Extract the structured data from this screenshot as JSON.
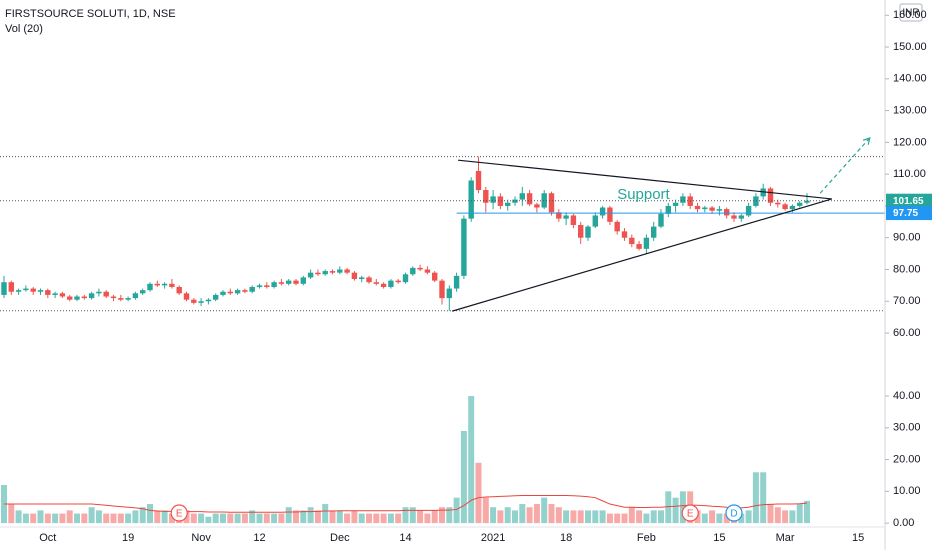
{
  "chart_data": {
    "type": "candlestick",
    "title": "FIRSTSOURCE SOLUTI, 1D, NSE",
    "indicator": "Vol (20)",
    "currency": "INR",
    "up_color": "#26a69a",
    "down_color": "#ef5350",
    "volume_up_color": "#93d2cc",
    "volume_down_color": "#f7a9a7",
    "ma_color": "#e8473f",
    "grid": false,
    "categories": [
      null,
      null,
      null,
      null,
      null,
      null,
      "Oct",
      null,
      null,
      null,
      null,
      null,
      null,
      null,
      null,
      null,
      null,
      "19",
      null,
      null,
      null,
      null,
      null,
      null,
      null,
      null,
      null,
      "Nov",
      null,
      null,
      null,
      null,
      null,
      null,
      null,
      "12",
      null,
      null,
      null,
      null,
      null,
      null,
      null,
      null,
      null,
      null,
      "Dec",
      null,
      null,
      null,
      null,
      null,
      null,
      null,
      null,
      "14",
      null,
      null,
      null,
      null,
      null,
      null,
      null,
      null,
      null,
      null,
      null,
      "2021",
      null,
      null,
      null,
      null,
      null,
      null,
      null,
      null,
      null,
      "18",
      null,
      null,
      null,
      null,
      null,
      null,
      null,
      null,
      null,
      null,
      "Feb",
      null,
      null,
      null,
      null,
      null,
      null,
      null,
      null,
      null,
      "15",
      null,
      null,
      null,
      null,
      null,
      null,
      null,
      null,
      "Mar",
      null,
      null,
      null,
      null,
      null,
      null,
      null,
      null,
      null,
      "15",
      null,
      null,
      null
    ],
    "open": [
      72,
      76,
      73,
      73.5,
      74,
      73,
      73.5,
      72,
      72.5,
      71.5,
      70.5,
      71.5,
      71,
      72.5,
      73,
      71.5,
      71,
      70.5,
      71,
      72.5,
      73.5,
      75.5,
      75,
      75.5,
      74.5,
      72.5,
      70.5,
      69.5,
      70,
      70.5,
      72,
      73,
      72.5,
      73.5,
      73,
      74.5,
      75,
      74.5,
      76,
      75.5,
      76.5,
      75.5,
      77.5,
      79,
      78.5,
      79.5,
      79,
      80,
      79,
      77,
      77.5,
      76,
      75.5,
      74.5,
      76.5,
      76,
      78.5,
      80.5,
      80,
      79,
      76.5,
      71,
      74,
      78,
      96,
      111,
      105,
      101,
      103,
      100,
      101,
      102,
      104,
      100.5,
      99.5,
      104,
      98,
      96,
      97,
      94,
      90,
      93.5,
      97,
      99.5,
      95,
      92,
      90,
      88,
      86.5,
      90,
      93.5,
      97.5,
      100,
      101,
      103,
      100,
      99,
      99.5,
      98.5,
      99,
      97,
      96,
      97,
      100,
      103,
      105.5,
      101,
      100.5,
      99,
      100,
      101,
      null,
      null,
      null,
      null,
      null,
      null,
      null,
      null,
      null,
      null
    ],
    "high": [
      78,
      76.5,
      74,
      75,
      74.5,
      74,
      74,
      73,
      73,
      72,
      72,
      72,
      73,
      74,
      73.5,
      72,
      72,
      71.5,
      73,
      74,
      76,
      76.5,
      76,
      77,
      75,
      73,
      71,
      71,
      71,
      72.5,
      73.5,
      74,
      74,
      74,
      75,
      75.5,
      76,
      76.5,
      77,
      77,
      77,
      78,
      80,
      80,
      80,
      80,
      81,
      80.5,
      79.5,
      78,
      78,
      77,
      76,
      77,
      77,
      79,
      81,
      81.5,
      81,
      79.5,
      77,
      75,
      79,
      97,
      109,
      115.5,
      106,
      105,
      104,
      102,
      103,
      106,
      105,
      101,
      105,
      104.5,
      99,
      98,
      97.5,
      95,
      94,
      98,
      100,
      100,
      95.5,
      93,
      91,
      89,
      91,
      95,
      99,
      101,
      102,
      104,
      104,
      101,
      100,
      100,
      100,
      99.5,
      98,
      97.5,
      101,
      104,
      107,
      106,
      102,
      101,
      100.5,
      101.5,
      104,
      null,
      null,
      null,
      null,
      null,
      null,
      null,
      null,
      null,
      null
    ],
    "low": [
      71,
      72,
      72,
      73,
      72,
      72,
      71,
      71,
      71,
      70,
      70,
      70.5,
      70.5,
      71.5,
      71,
      70,
      70,
      70,
      70.5,
      72,
      73,
      74.5,
      74,
      74,
      72,
      70,
      69,
      68.5,
      69,
      70,
      71.5,
      72,
      72,
      72.5,
      72.5,
      74,
      74,
      74,
      75,
      75,
      75,
      75,
      77,
      78,
      78,
      78.5,
      78.5,
      78.5,
      76.5,
      76,
      75.5,
      75,
      74,
      74,
      75.5,
      75.5,
      78,
      79.5,
      78.5,
      76,
      69,
      67,
      73,
      77,
      95,
      104,
      98,
      99,
      99,
      98.5,
      100,
      100,
      100,
      98,
      99,
      97,
      95,
      94,
      93,
      88,
      89,
      93,
      96,
      94,
      91,
      89,
      87,
      86,
      85,
      89,
      93,
      96.5,
      98,
      100,
      99,
      98,
      98,
      97.5,
      97,
      96,
      95,
      95,
      96.5,
      99.5,
      102,
      100,
      99.5,
      98.5,
      98,
      99.5,
      100.5,
      null,
      null,
      null,
      null,
      null,
      null,
      null,
      null,
      null,
      null
    ],
    "close": [
      76,
      73,
      73.5,
      74,
      73,
      73.5,
      72,
      72.5,
      71.5,
      70.5,
      71.5,
      71,
      72.5,
      73,
      71.5,
      71,
      70.5,
      71,
      72.5,
      73.5,
      75.5,
      75,
      75.5,
      74.5,
      72.5,
      70.5,
      69.5,
      70,
      70.5,
      72,
      73,
      72.5,
      73.5,
      73,
      74.5,
      75,
      74.5,
      76,
      75.5,
      76.5,
      75.5,
      77.5,
      79,
      78.5,
      79.5,
      79,
      80,
      79,
      77,
      77.5,
      76,
      75.5,
      74.5,
      76.5,
      76,
      78.5,
      80.5,
      80,
      79,
      76.5,
      71,
      74,
      78,
      96,
      108,
      105,
      101,
      103,
      100,
      101,
      102,
      104,
      100.5,
      99.5,
      104,
      98,
      96,
      97,
      94,
      90,
      93.5,
      97,
      99.5,
      95,
      92,
      90,
      88,
      86.5,
      90,
      93.5,
      97.5,
      100,
      101,
      103,
      100,
      99,
      99.5,
      98.5,
      99,
      97,
      96,
      97,
      100,
      103,
      105.5,
      101,
      100.5,
      99,
      100,
      101,
      101.65,
      null,
      null,
      null,
      null,
      null,
      null,
      null,
      null,
      null,
      null
    ],
    "volume": [
      12,
      6,
      4,
      3,
      3,
      4,
      3,
      3,
      3,
      4,
      3,
      3,
      5,
      4,
      3,
      3,
      3,
      3,
      4,
      5,
      6,
      4,
      4,
      3,
      3,
      4,
      3,
      3,
      2,
      3,
      3,
      3,
      3,
      3,
      4,
      3,
      3,
      3,
      3,
      5,
      4,
      4,
      5,
      4,
      6,
      4,
      4,
      3,
      4,
      3,
      3,
      3,
      3,
      3,
      3,
      5,
      5,
      4,
      3,
      4,
      5,
      5,
      8,
      29,
      40,
      19,
      8,
      5,
      4,
      5,
      4,
      6,
      5,
      6,
      8,
      6,
      5,
      4,
      4,
      4,
      4,
      4,
      4,
      3,
      3,
      3,
      5,
      4,
      3,
      4,
      4,
      10,
      8,
      10,
      10,
      4,
      3,
      4,
      3,
      3,
      3,
      3,
      4,
      16,
      16,
      6,
      5,
      4,
      4,
      6,
      7,
      null,
      null,
      null,
      null,
      null,
      null,
      null,
      null,
      null,
      null
    ],
    "volume_ma": [
      6,
      6,
      6,
      6,
      6,
      6,
      6,
      6,
      6,
      6,
      6,
      6,
      6,
      5.8,
      5.6,
      5.4,
      5.2,
      5,
      4.8,
      4.5,
      4,
      3.8,
      3.7,
      3.7,
      3.6,
      3.6,
      3.6,
      3.6,
      3.5,
      3.5,
      3.5,
      3.4,
      3.4,
      3.4,
      3.4,
      3.4,
      3.4,
      3.4,
      3.4,
      3.5,
      3.5,
      3.6,
      3.6,
      3.7,
      3.8,
      3.8,
      3.9,
      3.9,
      3.9,
      3.9,
      3.9,
      3.9,
      3.9,
      3.9,
      3.9,
      4,
      4,
      4,
      4,
      4,
      4.1,
      4.1,
      4.3,
      5.5,
      7.2,
      8,
      8.2,
      8.3,
      8.4,
      8.5,
      8.6,
      8.7,
      8.7,
      8.7,
      8.7,
      8.7,
      8.7,
      8.7,
      8.6,
      8.5,
      8.3,
      8,
      7,
      6,
      5.5,
      5,
      5,
      4.9,
      4.9,
      5,
      5,
      5.2,
      5.3,
      5.5,
      5.6,
      5.6,
      5.5,
      5.3,
      5.2,
      5,
      4.9,
      4.8,
      5,
      5.5,
      5.8,
      5.9,
      6,
      6,
      6,
      6.1,
      6.3,
      null,
      null,
      null,
      null,
      null,
      null,
      null,
      null,
      null,
      null
    ],
    "ylim": [
      -0.4,
      164.8
    ],
    "yticks": [
      {
        "value": 60,
        "label": "60.00"
      },
      {
        "value": 70,
        "label": "70.00"
      },
      {
        "value": 80,
        "label": "80.00"
      },
      {
        "value": 90,
        "label": "90.00"
      },
      {
        "value": 100,
        "label": "100.00"
      },
      {
        "value": 110,
        "label": "110.00"
      },
      {
        "value": 120,
        "label": "120.00"
      },
      {
        "value": 130,
        "label": "130.00"
      },
      {
        "value": 140,
        "label": "140.00"
      },
      {
        "value": 150,
        "label": "150.00"
      },
      {
        "value": 160,
        "label": "160.00"
      }
    ],
    "y2lim": [
      -0.6,
      164.7
    ],
    "y2ticks": [
      {
        "value": 0,
        "label": "0.00"
      },
      {
        "value": 10,
        "label": "10.00"
      },
      {
        "value": 20,
        "label": "20.00"
      },
      {
        "value": 30,
        "label": "30.00"
      },
      {
        "value": 40,
        "label": "40.00"
      }
    ],
    "levels": [
      {
        "value": 115.5,
        "style": "dotted"
      },
      {
        "value": 101.65,
        "style": "dotted",
        "tag_color": "#26a69a"
      },
      {
        "value": 97.75,
        "style": "solid",
        "start": 62,
        "color": "#2196f3",
        "tag_color": "#2196f3"
      },
      {
        "value": 67,
        "style": "dotted"
      }
    ],
    "trendlines": [
      {
        "from": [
          62.2,
          114.4
        ],
        "to": [
          113.4,
          102.2
        ]
      },
      {
        "from": [
          61.4,
          66.9
        ],
        "to": [
          113.4,
          102.2
        ]
      }
    ],
    "projection": {
      "from": [
        111.8,
        104
      ],
      "to": [
        118.6,
        121.4
      ],
      "color": "#26a69a"
    },
    "annotation": {
      "text": "Support",
      "at": [
        84,
        103.5
      ],
      "color": "#26a69a"
    },
    "events": [
      {
        "index": 24,
        "label": "E",
        "color": "#ef5350"
      },
      {
        "index": 94,
        "label": "E",
        "color": "#ef5350"
      },
      {
        "index": 100,
        "label": "D",
        "color": "#2196f3"
      }
    ]
  }
}
